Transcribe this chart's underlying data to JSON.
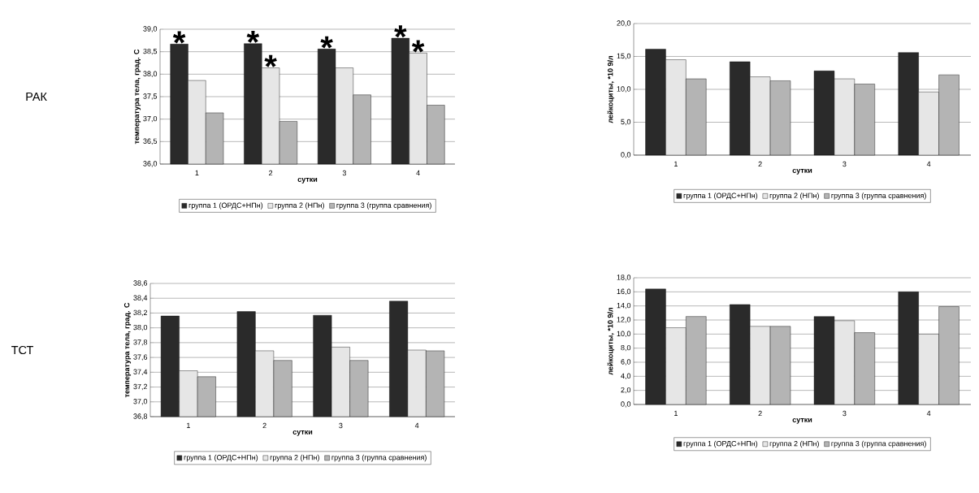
{
  "chart_data": [
    {
      "type": "bar",
      "categories": [
        "1",
        "2",
        "3",
        "4"
      ],
      "xlabel": "сутки",
      "ylabel": "температура тела, град. С",
      "ylim": [
        36,
        39
      ],
      "yticks": [
        {
          "value": 36,
          "label": "36,0"
        },
        {
          "value": 36.5,
          "label": "36,5"
        },
        {
          "value": 37,
          "label": "37,0"
        },
        {
          "value": 37.5,
          "label": "37,5"
        },
        {
          "value": 38,
          "label": "38,0"
        },
        {
          "value": 38.5,
          "label": "38,5"
        },
        {
          "value": 39,
          "label": "39,0"
        }
      ],
      "grid": "y",
      "legend": "bottom",
      "series": [
        {
          "name": "группа 1 (ОРДС+НПн)",
          "color": "#2a2a2a",
          "values": [
            38.67,
            38.68,
            38.56,
            38.8
          ]
        },
        {
          "name": "группа 2 (НПн)",
          "color": "#e6e6e6",
          "values": [
            37.86,
            38.14,
            38.14,
            38.47
          ]
        },
        {
          "name": "группа 3 (группа сравнения)",
          "color": "#b4b4b4",
          "values": [
            37.14,
            36.95,
            37.54,
            37.31
          ]
        }
      ],
      "annotations": [
        "РАК",
        "*",
        "*",
        "*",
        "*",
        "*",
        "*"
      ]
    },
    {
      "type": "bar",
      "categories": [
        "1",
        "2",
        "3",
        "4"
      ],
      "xlabel": "сутки",
      "ylabel": "лейкоциты, *10 9/л",
      "ylim": [
        0,
        20
      ],
      "yticks": [
        {
          "value": 0,
          "label": "0,0"
        },
        {
          "value": 5,
          "label": "5,0"
        },
        {
          "value": 10,
          "label": "10,0"
        },
        {
          "value": 15,
          "label": "15,0"
        },
        {
          "value": 20,
          "label": "20,0"
        }
      ],
      "grid": "y",
      "legend": "bottom",
      "series": [
        {
          "name": "группа 1 (ОРДС+НПн)",
          "color": "#2a2a2a",
          "values": [
            16.1,
            14.2,
            12.8,
            15.6
          ]
        },
        {
          "name": "группа 2 (НПн)",
          "color": "#e6e6e6",
          "values": [
            14.5,
            11.9,
            11.6,
            9.6
          ]
        },
        {
          "name": "группа 3 (группа сравнения)",
          "color": "#b4b4b4",
          "values": [
            11.6,
            11.3,
            10.8,
            12.2
          ]
        }
      ]
    },
    {
      "type": "bar",
      "categories": [
        "1",
        "2",
        "3",
        "4"
      ],
      "xlabel": "сутки",
      "ylabel": "температура тела, град. С",
      "ylim": [
        36.8,
        38.6
      ],
      "yticks": [
        {
          "value": 36.8,
          "label": "36,8"
        },
        {
          "value": 37,
          "label": "37,0"
        },
        {
          "value": 37.2,
          "label": "37,2"
        },
        {
          "value": 37.4,
          "label": "37,4"
        },
        {
          "value": 37.6,
          "label": "37,6"
        },
        {
          "value": 37.8,
          "label": "37,8"
        },
        {
          "value": 38,
          "label": "38,0"
        },
        {
          "value": 38.2,
          "label": "38,2"
        },
        {
          "value": 38.4,
          "label": "38,4"
        },
        {
          "value": 38.6,
          "label": "38,6"
        }
      ],
      "grid": "y",
      "legend": "bottom",
      "series": [
        {
          "name": "группа 1 (ОРДС+НПн)",
          "color": "#2a2a2a",
          "values": [
            38.16,
            38.22,
            38.17,
            38.36
          ]
        },
        {
          "name": "группа 2 (НПн)",
          "color": "#e6e6e6",
          "values": [
            37.42,
            37.69,
            37.74,
            37.7
          ]
        },
        {
          "name": "группа 3 (группа сравнения)",
          "color": "#b4b4b4",
          "values": [
            37.34,
            37.56,
            37.56,
            37.69
          ]
        }
      ],
      "annotations": [
        "ТСТ"
      ]
    },
    {
      "type": "bar",
      "categories": [
        "1",
        "2",
        "3",
        "4"
      ],
      "xlabel": "сутки",
      "ylabel": "лейкоциты, *10 9/л",
      "ylim": [
        0,
        18
      ],
      "yticks": [
        {
          "value": 0,
          "label": "0,0"
        },
        {
          "value": 2,
          "label": "2,0"
        },
        {
          "value": 4,
          "label": "4,0"
        },
        {
          "value": 6,
          "label": "6,0"
        },
        {
          "value": 8,
          "label": "8,0"
        },
        {
          "value": 10,
          "label": "10,0"
        },
        {
          "value": 12,
          "label": "12,0"
        },
        {
          "value": 14,
          "label": "14,0"
        },
        {
          "value": 16,
          "label": "16,0"
        },
        {
          "value": 18,
          "label": "18,0"
        }
      ],
      "grid": "y",
      "legend": "bottom",
      "series": [
        {
          "name": "группа 1 (ОРДС+НПн)",
          "color": "#2a2a2a",
          "values": [
            16.4,
            14.2,
            12.5,
            16.0
          ]
        },
        {
          "name": "группа 2 (НПн)",
          "color": "#e6e6e6",
          "values": [
            10.9,
            11.1,
            11.9,
            10.0
          ]
        },
        {
          "name": "группа 3 (группа сравнения)",
          "color": "#b4b4b4",
          "values": [
            12.5,
            11.1,
            10.2,
            13.9
          ]
        }
      ]
    }
  ]
}
